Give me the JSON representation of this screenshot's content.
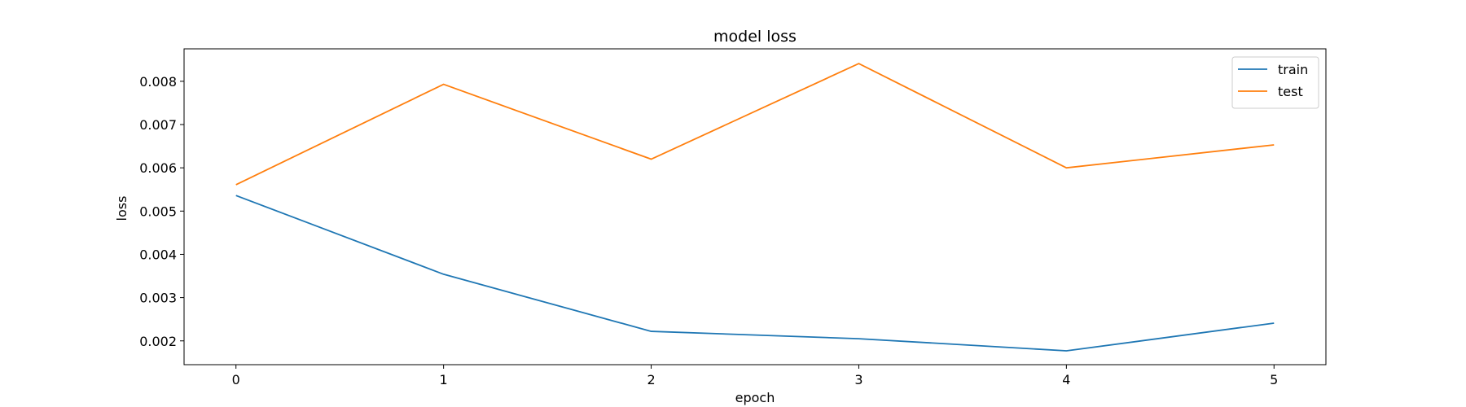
{
  "chart_data": {
    "type": "line",
    "title": "model loss",
    "xlabel": "epoch",
    "ylabel": "loss",
    "x": [
      0,
      1,
      2,
      3,
      4,
      5
    ],
    "xticks": [
      "0",
      "1",
      "2",
      "3",
      "4",
      "5"
    ],
    "yticks": [
      "0.002",
      "0.003",
      "0.004",
      "0.005",
      "0.006",
      "0.007",
      "0.008"
    ],
    "xlim": [
      -0.25,
      5.25
    ],
    "ylim": [
      0.00145,
      0.00875
    ],
    "grid": false,
    "legend": "top-right",
    "series": [
      {
        "name": "train",
        "color": "#1f77b4",
        "values": [
          0.00536,
          0.00354,
          0.00222,
          0.00205,
          0.00177,
          0.00241
        ]
      },
      {
        "name": "test",
        "color": "#ff7f0e",
        "values": [
          0.00561,
          0.00793,
          0.0062,
          0.00841,
          0.006,
          0.00653
        ]
      }
    ]
  }
}
